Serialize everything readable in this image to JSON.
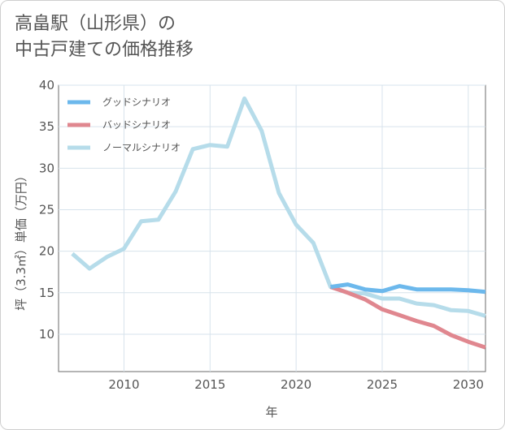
{
  "chart_data": {
    "type": "line",
    "title_lines": [
      "高畠駅（山形県）の",
      "中古戸建ての価格推移"
    ],
    "xlabel": "年",
    "ylabel": "坪（3.3㎡）単価（万円）",
    "xlim": [
      2006.2,
      2031
    ],
    "ylim": [
      5.5,
      40
    ],
    "xticks": [
      2010,
      2015,
      2020,
      2025,
      2030
    ],
    "yticks": [
      10,
      15,
      20,
      25,
      30,
      35,
      40
    ],
    "grid": true,
    "legend_position": "top-left",
    "series": [
      {
        "name": "グッドシナリオ",
        "color": "#6cb8ec",
        "x": [
          2022,
          2023,
          2024,
          2025,
          2026,
          2027,
          2028,
          2029,
          2030,
          2031
        ],
        "y": [
          15.7,
          16.0,
          15.4,
          15.2,
          15.8,
          15.4,
          15.4,
          15.4,
          15.3,
          15.1
        ]
      },
      {
        "name": "バッドシナリオ",
        "color": "#e0878f",
        "x": [
          2022,
          2023,
          2024,
          2025,
          2026,
          2027,
          2028,
          2029,
          2030,
          2031
        ],
        "y": [
          15.7,
          15.0,
          14.2,
          13.0,
          12.3,
          11.6,
          11.0,
          9.9,
          9.1,
          8.4
        ]
      },
      {
        "name": "ノーマルシナリオ",
        "color": "#b6dcea",
        "x": [
          2007,
          2008,
          2009,
          2010,
          2011,
          2012,
          2013,
          2014,
          2015,
          2016,
          2017,
          2018,
          2019,
          2020,
          2021,
          2022,
          2023,
          2024,
          2025,
          2026,
          2027,
          2028,
          2029,
          2030,
          2031
        ],
        "y": [
          19.7,
          17.9,
          19.3,
          20.3,
          23.6,
          23.8,
          27.2,
          32.3,
          32.8,
          32.6,
          38.4,
          34.5,
          27.0,
          23.2,
          21.0,
          15.7,
          15.0,
          14.9,
          14.3,
          14.3,
          13.7,
          13.5,
          12.9,
          12.8,
          12.2
        ]
      }
    ]
  }
}
